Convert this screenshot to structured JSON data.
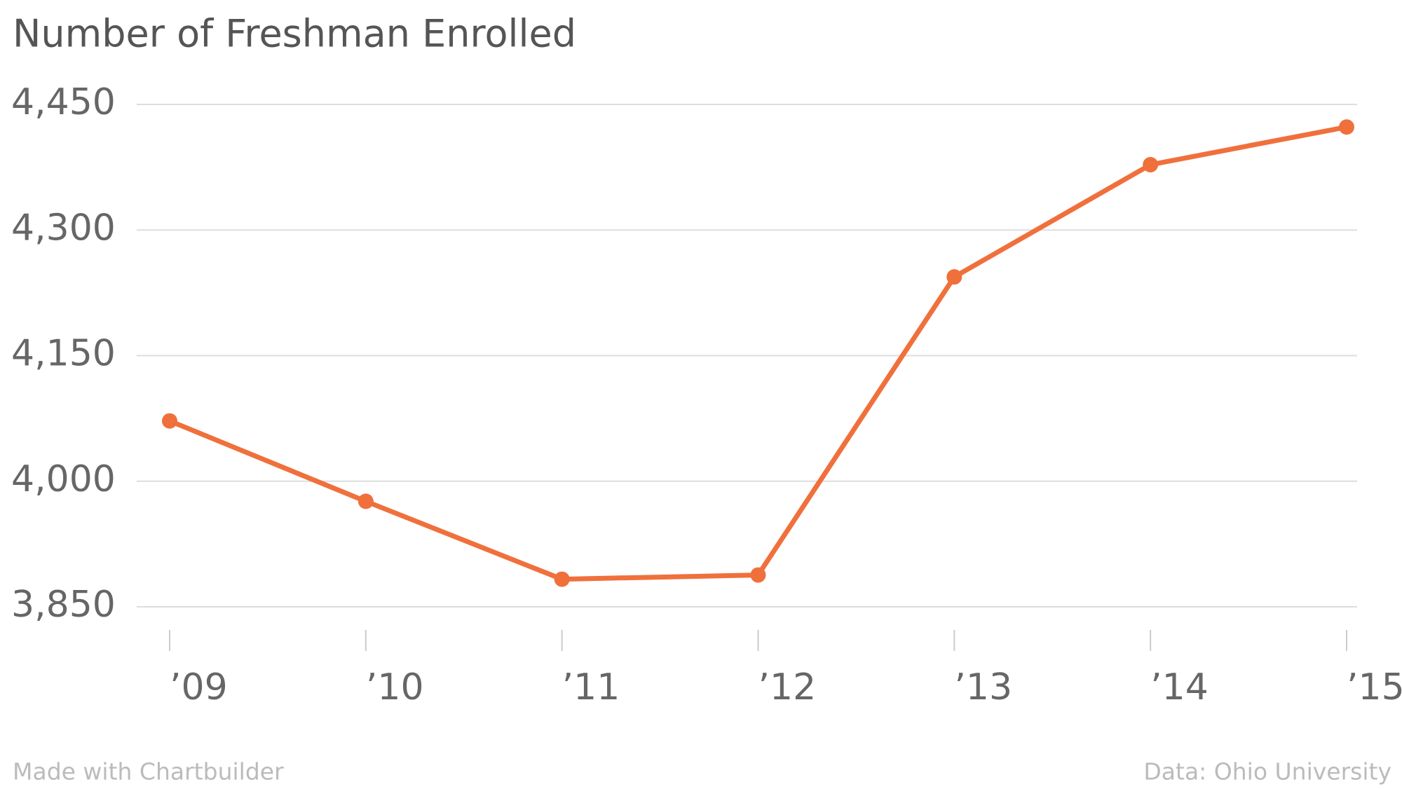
{
  "chart_data": {
    "type": "line",
    "title": "Number of Freshman Enrolled",
    "categories": [
      "’09",
      "’10",
      "’11",
      "’12",
      "’13",
      "’14",
      "’15"
    ],
    "series": [
      {
        "name": "Freshman enrolled",
        "color": "#f0703c",
        "values": [
          4072,
          3976,
          3883,
          3888,
          4244,
          4378,
          4423
        ]
      }
    ],
    "ylim": [
      3850,
      4450
    ],
    "yticks": [
      {
        "value": 3850,
        "label": "3,850"
      },
      {
        "value": 4000,
        "label": "4,000"
      },
      {
        "value": 4150,
        "label": "4,150"
      },
      {
        "value": 4300,
        "label": "4,300"
      },
      {
        "value": 4450,
        "label": "4,450"
      }
    ],
    "grid": true,
    "credit": "Made with Chartbuilder",
    "source": "Data: Ohio University"
  }
}
